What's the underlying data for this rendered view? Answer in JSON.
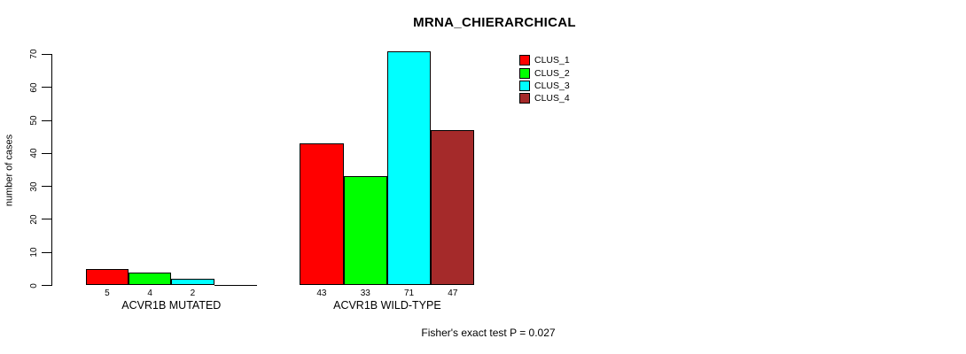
{
  "title": "MRNA_CHIERARCHICAL",
  "footer": "Fisher's exact test P = 0.027",
  "y_axis": {
    "label": "number of cases",
    "tick_labels": [
      "0",
      "10",
      "20",
      "30",
      "40",
      "50",
      "60",
      "70"
    ]
  },
  "legend": {
    "items": [
      {
        "label": "CLUS_1",
        "color": "#FF0000"
      },
      {
        "label": "CLUS_2",
        "color": "#00FF00"
      },
      {
        "label": "CLUS_3",
        "color": "#00FFFF"
      },
      {
        "label": "CLUS_4",
        "color": "#A52A2A"
      }
    ]
  },
  "chart_data": {
    "type": "bar",
    "title": "MRNA_CHIERARCHICAL",
    "xlabel": "",
    "ylabel": "number of cases",
    "ylim": [
      0,
      70
    ],
    "yticks": [
      0,
      10,
      20,
      30,
      40,
      50,
      60,
      70
    ],
    "grid": false,
    "legend_position": "top-right",
    "categories": [
      "ACVR1B MUTATED",
      "ACVR1B WILD-TYPE"
    ],
    "series": [
      {
        "name": "CLUS_1",
        "color": "#FF0000",
        "values": [
          5,
          43
        ]
      },
      {
        "name": "CLUS_2",
        "color": "#00FF00",
        "values": [
          4,
          33
        ]
      },
      {
        "name": "CLUS_3",
        "color": "#00FFFF",
        "values": [
          2,
          71
        ]
      },
      {
        "name": "CLUS_4",
        "color": "#A52A2A",
        "values": [
          0,
          47
        ]
      }
    ],
    "bar_value_labels": [
      [
        "5",
        "4",
        "2",
        ""
      ],
      [
        "43",
        "33",
        "71",
        "47"
      ]
    ],
    "annotation": "Fisher's exact test P = 0.027"
  }
}
